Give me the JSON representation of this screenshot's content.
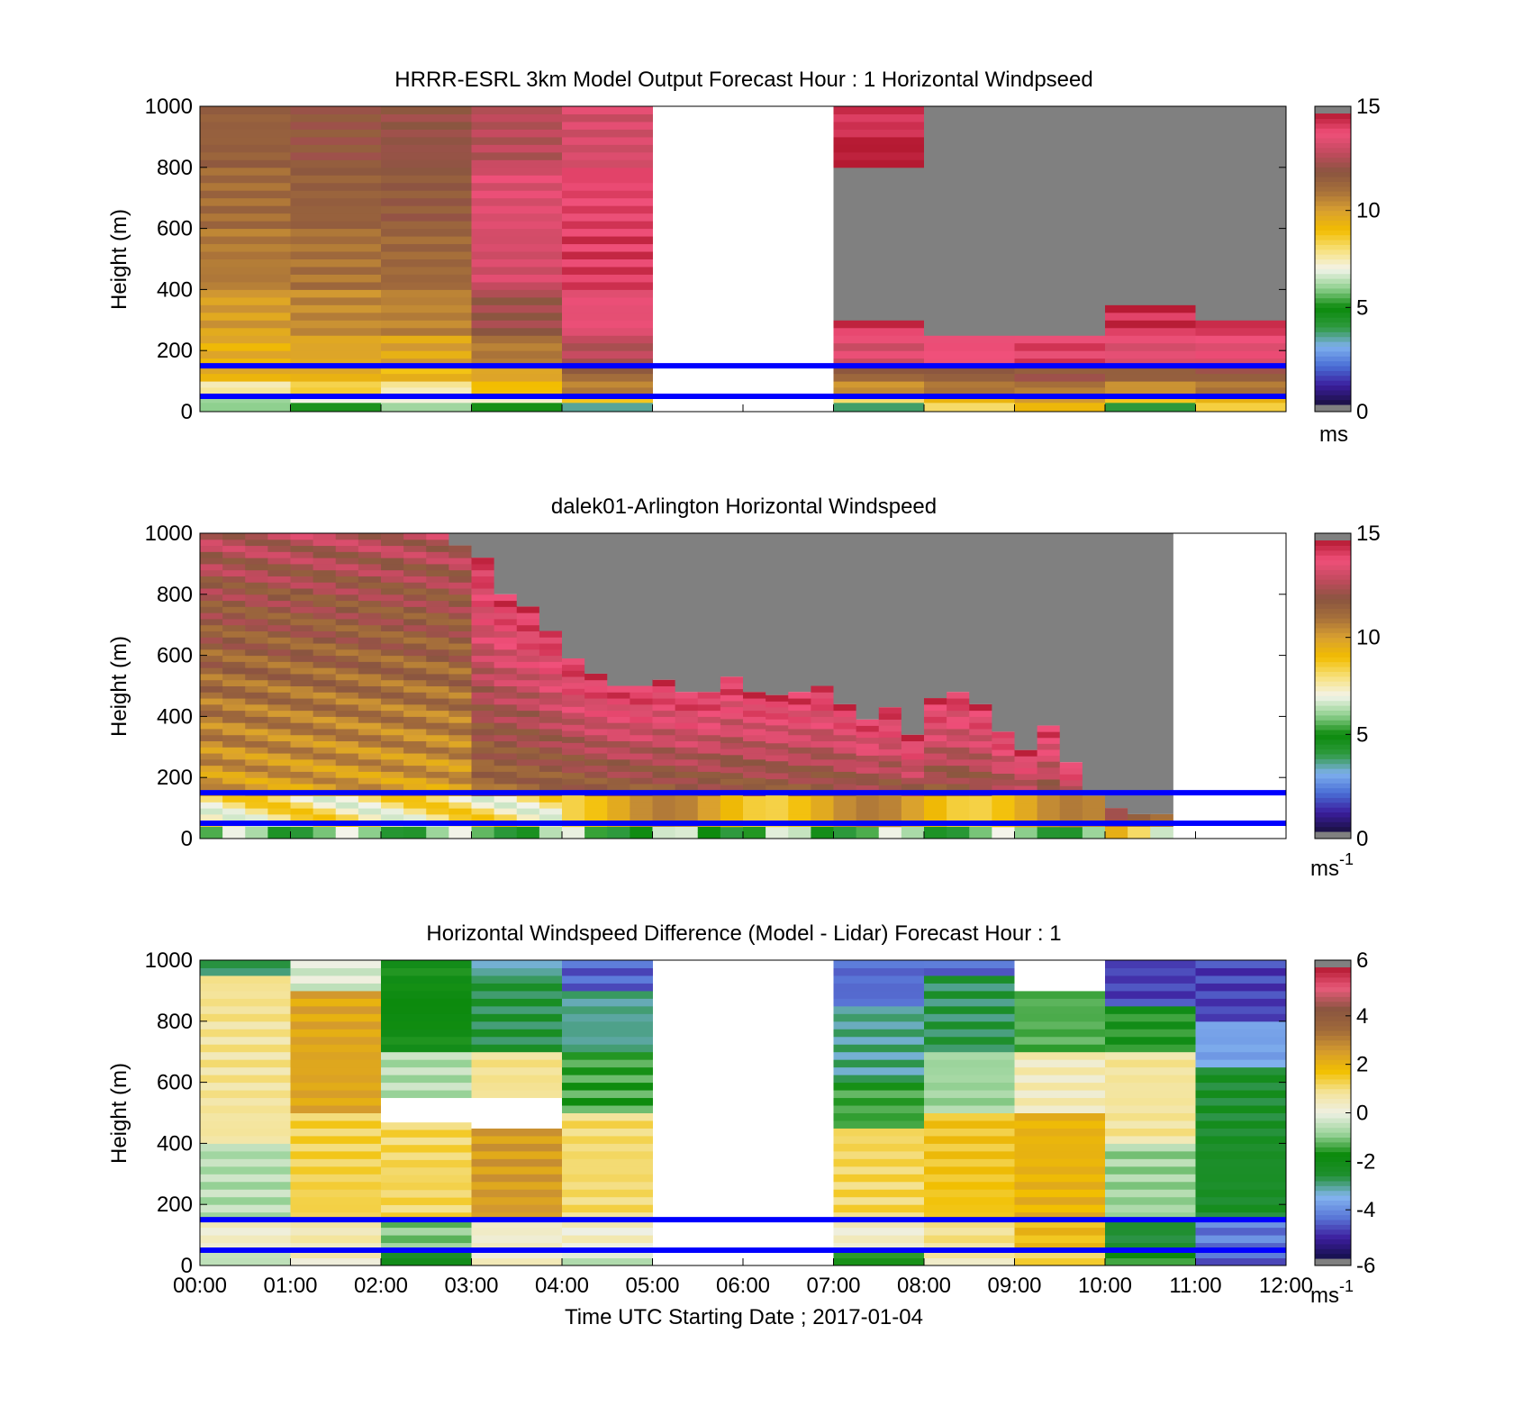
{
  "figure": {
    "xlabel": "Time UTC  Starting Date ; 2017-01-04",
    "time_ticks": [
      "00:00",
      "01:00",
      "02:00",
      "03:00",
      "04:00",
      "05:00",
      "06:00",
      "07:00",
      "08:00",
      "09:00",
      "10:00",
      "11:00",
      "12:00"
    ]
  },
  "colors": {
    "ref_lines": "#0000ff",
    "missing_fill": "#808080",
    "speed_colormap": [
      "#808080",
      "#1a1040",
      "#3b1e9e",
      "#4a6fd6",
      "#7fb0ee",
      "#2e9a3e",
      "#0b8a0b",
      "#8fd08f",
      "#f4f4ea",
      "#f7e07a",
      "#f2bd00",
      "#d9a030",
      "#a7703a",
      "#8a5540",
      "#c24a5e",
      "#f0507a",
      "#b51a32"
    ],
    "diff_colormap": [
      "#808080",
      "#14104a",
      "#3d1e9e",
      "#5a78d8",
      "#84b6f0",
      "#1f8f2f",
      "#0b8a0b",
      "#9bd49b",
      "#eef0e4",
      "#f4e49a",
      "#f2c000",
      "#d49a2e",
      "#a06a3a",
      "#8a5540",
      "#e85a7a",
      "#b51a32"
    ]
  },
  "chart_data": [
    {
      "type": "heatmap",
      "title": "HRRR-ESRL 3km Model Output   Forecast Hour : 1 Horizontal Windpseed",
      "xlabel": "",
      "ylabel": "Height (m)",
      "colorbar_label": "ms",
      "clim": [
        0,
        15
      ],
      "colorbar_ticks": [
        "0",
        "5",
        "10",
        "15"
      ],
      "ylim": [
        0,
        1000
      ],
      "yticks": [
        "0",
        "200",
        "400",
        "600",
        "800",
        "1000"
      ],
      "xlim_hours": [
        0,
        12
      ],
      "reference_lines_m": [
        150,
        50
      ],
      "columns": [
        {
          "t0": 0,
          "t1": 1,
          "segments": [
            [
              0,
              30,
              6.0
            ],
            [
              30,
              60,
              6.5
            ],
            [
              60,
              100,
              7.8
            ],
            [
              100,
              150,
              9.5
            ],
            [
              150,
              250,
              9.5
            ],
            [
              250,
              400,
              10.0
            ],
            [
              400,
              600,
              10.8
            ],
            [
              600,
              800,
              11.2
            ],
            [
              800,
              1000,
              11.6
            ]
          ]
        },
        {
          "t0": 1,
          "t1": 2,
          "segments": [
            [
              0,
              30,
              5.5
            ],
            [
              30,
              60,
              7.0
            ],
            [
              60,
              100,
              8.2
            ],
            [
              100,
              150,
              9.6
            ],
            [
              150,
              250,
              9.8
            ],
            [
              250,
              400,
              10.5
            ],
            [
              400,
              600,
              11.0
            ],
            [
              600,
              800,
              11.6
            ],
            [
              800,
              1000,
              12.0
            ]
          ]
        },
        {
          "t0": 2,
          "t1": 3,
          "segments": [
            [
              0,
              30,
              6.0
            ],
            [
              30,
              60,
              6.8
            ],
            [
              60,
              100,
              7.5
            ],
            [
              100,
              150,
              9.2
            ],
            [
              150,
              250,
              9.8
            ],
            [
              250,
              400,
              10.6
            ],
            [
              400,
              600,
              11.3
            ],
            [
              600,
              800,
              11.8
            ],
            [
              800,
              1000,
              12.2
            ]
          ]
        },
        {
          "t0": 3,
          "t1": 4,
          "segments": [
            [
              0,
              30,
              4.8
            ],
            [
              30,
              60,
              7.5
            ],
            [
              60,
              100,
              9.3
            ],
            [
              100,
              150,
              9.8
            ],
            [
              150,
              250,
              10.8
            ],
            [
              250,
              400,
              12.3
            ],
            [
              400,
              600,
              13.4
            ],
            [
              600,
              800,
              13.6
            ],
            [
              800,
              1000,
              12.8
            ]
          ]
        },
        {
          "t0": 4,
          "t1": 5,
          "segments": [
            [
              0,
              30,
              3.8
            ],
            [
              30,
              60,
              9.0
            ],
            [
              60,
              100,
              10.6
            ],
            [
              100,
              150,
              11.5
            ],
            [
              150,
              250,
              12.8
            ],
            [
              250,
              400,
              13.8
            ],
            [
              400,
              600,
              14.4
            ],
            [
              600,
              800,
              14.2
            ],
            [
              800,
              1000,
              13.4
            ]
          ]
        },
        {
          "t0": 5,
          "t1": 7,
          "segments": []
        },
        {
          "t0": 7,
          "t1": 8,
          "segments": [
            [
              0,
              30,
              3.8
            ],
            [
              30,
              60,
              8.5
            ],
            [
              60,
              100,
              10.5
            ],
            [
              100,
              150,
              11.6
            ],
            [
              150,
              250,
              13.5
            ],
            [
              250,
              300,
              14.5
            ],
            [
              300,
              800,
              0
            ],
            [
              800,
              900,
              15.0
            ],
            [
              900,
              1000,
              14.5
            ]
          ]
        },
        {
          "t0": 8,
          "t1": 9,
          "segments": [
            [
              0,
              30,
              8.5
            ],
            [
              30,
              60,
              9.2
            ],
            [
              60,
              100,
              10.6
            ],
            [
              100,
              150,
              11.8
            ],
            [
              150,
              250,
              14.0
            ],
            [
              250,
              1000,
              0
            ]
          ]
        },
        {
          "t0": 9,
          "t1": 10,
          "segments": [
            [
              0,
              30,
              9.0
            ],
            [
              30,
              60,
              9.8
            ],
            [
              60,
              100,
              10.8
            ],
            [
              100,
              150,
              12.0
            ],
            [
              150,
              250,
              14.2
            ],
            [
              250,
              1000,
              0
            ]
          ]
        },
        {
          "t0": 10,
          "t1": 11,
          "segments": [
            [
              0,
              30,
              3.8
            ],
            [
              30,
              60,
              9.0
            ],
            [
              60,
              100,
              10.6
            ],
            [
              100,
              150,
              11.6
            ],
            [
              150,
              250,
              13.6
            ],
            [
              250,
              350,
              14.6
            ],
            [
              350,
              1000,
              0
            ]
          ]
        },
        {
          "t0": 11,
          "t1": 12,
          "segments": [
            [
              0,
              30,
              8.8
            ],
            [
              30,
              60,
              9.6
            ],
            [
              60,
              100,
              10.8
            ],
            [
              100,
              150,
              12.0
            ],
            [
              150,
              250,
              13.8
            ],
            [
              250,
              300,
              14.6
            ],
            [
              300,
              1000,
              0
            ]
          ]
        }
      ]
    },
    {
      "type": "heatmap",
      "title": "dalek01-Arlington  Horizontal Windspeed",
      "xlabel": "",
      "ylabel": "Height (m)",
      "colorbar_label": "ms",
      "colorbar_label_sup": "-1",
      "clim": [
        0,
        15
      ],
      "colorbar_ticks": [
        "0",
        "5",
        "10",
        "15"
      ],
      "ylim": [
        0,
        1000
      ],
      "yticks": [
        "0",
        "200",
        "400",
        "600",
        "800",
        "1000"
      ],
      "xlim_hours": [
        0,
        12
      ],
      "reference_lines_m": [
        150,
        50
      ],
      "column_width_hours": 0.25,
      "data_top_m": [
        1000,
        1000,
        1000,
        1000,
        1000,
        1000,
        1000,
        1000,
        1000,
        1000,
        1000,
        960,
        920,
        800,
        760,
        680,
        590,
        540,
        500,
        500,
        520,
        480,
        480,
        530,
        480,
        470,
        480,
        500,
        440,
        390,
        430,
        340,
        460,
        480,
        440,
        350,
        290,
        370,
        250,
        140,
        100,
        80,
        80
      ],
      "notes_hours_with_gaps_above_top": [
        4.9,
        5.8,
        9.2,
        11.7
      ]
    },
    {
      "type": "heatmap",
      "title": "Horizontal Windspeed Difference (Model - Lidar) Forecast Hour : 1",
      "xlabel": "Time UTC  Starting Date ; 2017-01-04",
      "ylabel": "Height (m)",
      "colorbar_label": "ms",
      "colorbar_label_sup": "-1",
      "clim": [
        -6,
        6
      ],
      "colorbar_ticks": [
        "-6",
        "-4",
        "-2",
        "0",
        "2",
        "4",
        "6"
      ],
      "ylim": [
        0,
        1000
      ],
      "yticks": [
        "0",
        "200",
        "400",
        "600",
        "800",
        "1000"
      ],
      "xlim_hours": [
        0,
        12
      ],
      "reference_lines_m": [
        150,
        50
      ],
      "columns": [
        {
          "t0": 0,
          "t1": 1,
          "segments": [
            [
              0,
              50,
              -0.5
            ],
            [
              50,
              150,
              0.3
            ],
            [
              150,
              400,
              -0.6
            ],
            [
              400,
              800,
              0.8
            ],
            [
              800,
              950,
              0.9
            ],
            [
              950,
              1000,
              -2.8
            ]
          ]
        },
        {
          "t0": 1,
          "t1": 2,
          "segments": [
            [
              0,
              50,
              0.4
            ],
            [
              50,
              150,
              0.6
            ],
            [
              150,
              500,
              1.3
            ],
            [
              500,
              900,
              2.3
            ],
            [
              900,
              1000,
              -0.2
            ]
          ]
        },
        {
          "t0": 2,
          "t1": 3,
          "segments": [
            [
              0,
              50,
              -2.2
            ],
            [
              50,
              150,
              -1.0
            ],
            [
              150,
              470,
              1.2
            ],
            [
              470,
              550,
              null
            ],
            [
              550,
              700,
              -0.6
            ],
            [
              700,
              1000,
              -1.8
            ]
          ]
        },
        {
          "t0": 3,
          "t1": 4,
          "segments": [
            [
              0,
              50,
              0.3
            ],
            [
              50,
              150,
              0.3
            ],
            [
              150,
              450,
              2.5
            ],
            [
              450,
              550,
              null
            ],
            [
              550,
              700,
              0.9
            ],
            [
              700,
              950,
              -2.6
            ],
            [
              950,
              1000,
              -3.2
            ]
          ]
        },
        {
          "t0": 4,
          "t1": 5,
          "segments": [
            [
              0,
              50,
              -0.4
            ],
            [
              50,
              150,
              0.3
            ],
            [
              150,
              500,
              1.1
            ],
            [
              500,
              700,
              -1.4
            ],
            [
              700,
              900,
              -3.0
            ],
            [
              900,
              1000,
              -4.5
            ]
          ]
        },
        {
          "t0": 5,
          "t1": 7,
          "segments": []
        },
        {
          "t0": 7,
          "t1": 8,
          "segments": [
            [
              0,
              50,
              -1.6
            ],
            [
              50,
              150,
              0.3
            ],
            [
              150,
              450,
              1.2
            ],
            [
              450,
              600,
              -1.4
            ],
            [
              600,
              850,
              -3.0
            ],
            [
              850,
              1000,
              -4.4
            ]
          ]
        },
        {
          "t0": 8,
          "t1": 9,
          "segments": [
            [
              0,
              50,
              0.6
            ],
            [
              50,
              150,
              0.9
            ],
            [
              150,
              500,
              1.6
            ],
            [
              500,
              700,
              -0.8
            ],
            [
              700,
              950,
              -2.7
            ],
            [
              950,
              1000,
              -4.4
            ]
          ]
        },
        {
          "t0": 9,
          "t1": 10,
          "segments": [
            [
              0,
              50,
              1.3
            ],
            [
              50,
              150,
              1.8
            ],
            [
              150,
              500,
              2.0
            ],
            [
              500,
              700,
              0.5
            ],
            [
              700,
              900,
              -1.3
            ],
            [
              900,
              1000,
              null
            ]
          ]
        },
        {
          "t0": 10,
          "t1": 11,
          "segments": [
            [
              0,
              50,
              -1.6
            ],
            [
              50,
              150,
              -2.6
            ],
            [
              150,
              400,
              -0.8
            ],
            [
              400,
              700,
              0.8
            ],
            [
              700,
              850,
              -1.7
            ],
            [
              850,
              1000,
              -4.8
            ]
          ]
        },
        {
          "t0": 11,
          "t1": 12,
          "segments": [
            [
              0,
              50,
              -4.5
            ],
            [
              50,
              150,
              -4.2
            ],
            [
              150,
              650,
              -2.4
            ],
            [
              650,
              800,
              -3.7
            ],
            [
              800,
              1000,
              -4.8
            ]
          ]
        }
      ]
    }
  ]
}
